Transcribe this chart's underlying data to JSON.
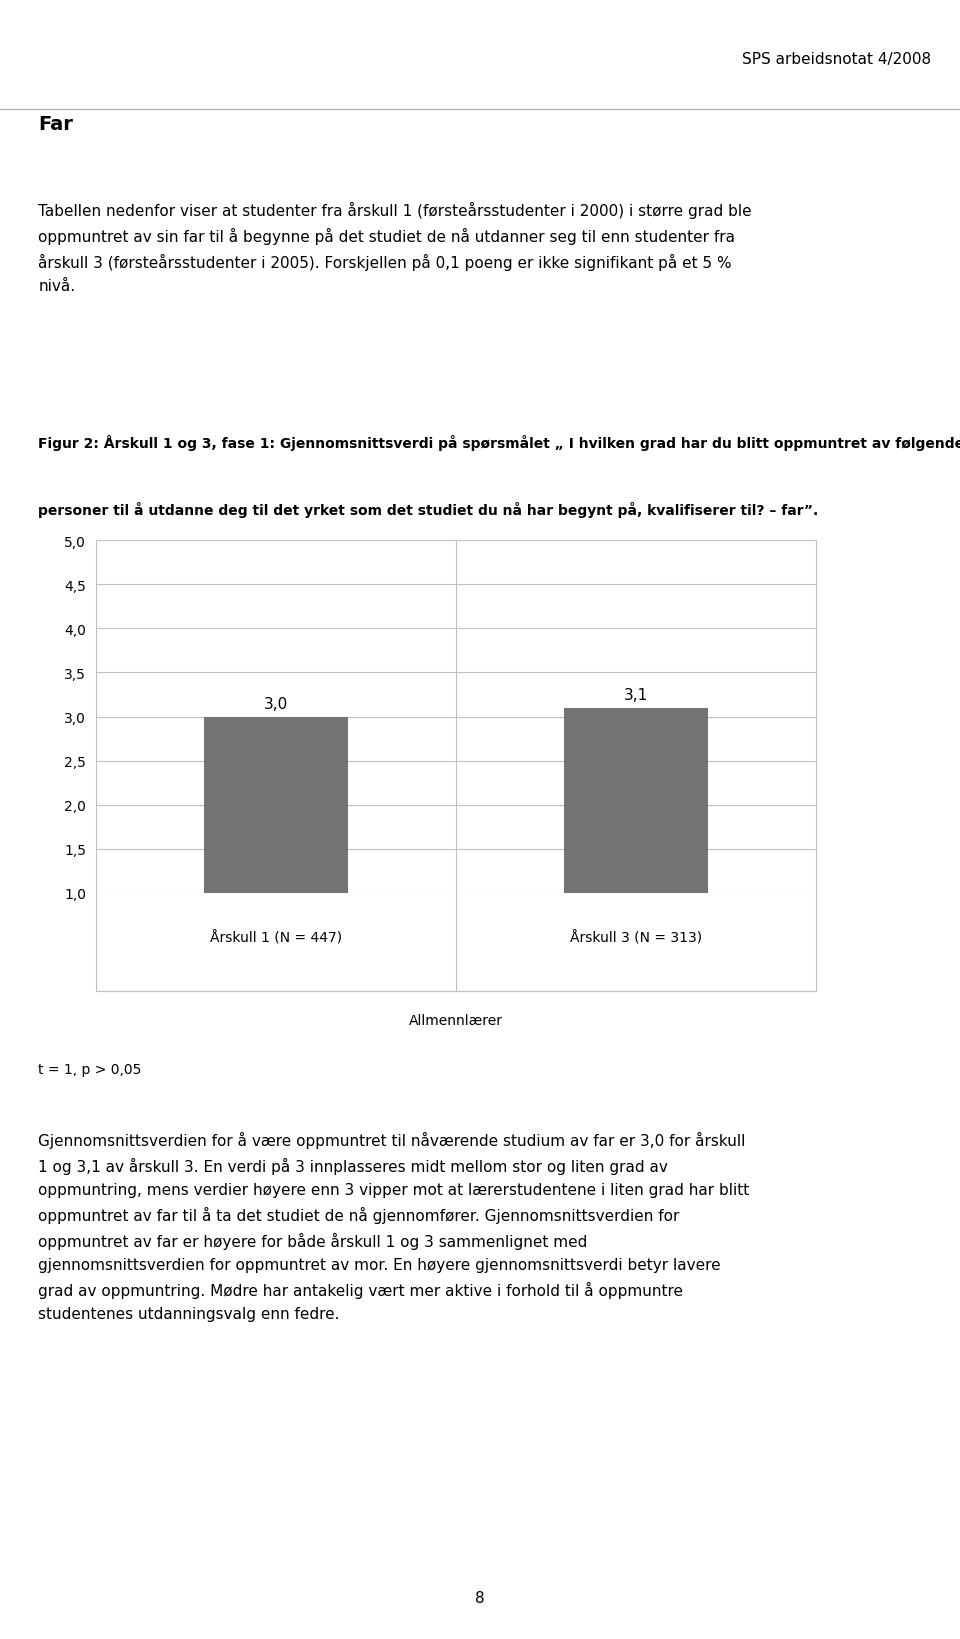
{
  "header_right": "SPS arbeidsnotat 4/2008",
  "intro_bold": "Far",
  "intro_line1": "Tabellen nedenfor viser at studenter fra årskull 1 (førsteårsstudenter i 2000) i større grad ble",
  "intro_line2": "oppmuntret av sin far til å begynne på det studiet de nå utdanner seg til enn studenter fra",
  "intro_line3": "årskull 3 (førsteårsstudenter i 2005). Forskjellen på 0,1 poeng er ikke signifikant på et 5 %",
  "intro_line4": "nivå.",
  "caption_line1": "Figur 2: Årskull 1 og 3, fase 1: Gjennomsnittsverdi på spørsmålet „ I hvilken grad har du blitt oppmuntret av følgende",
  "caption_line2": "personer til å utdanne deg til det yrket som det studiet du nå har begynt på, kvalifiserer til? – far”.",
  "categories": [
    "Årskull 1 (N = 447)",
    "Årskull 3 (N = 313)"
  ],
  "values": [
    3.0,
    3.1
  ],
  "bar_labels": [
    "3,0",
    "3,1"
  ],
  "xlabel_group": "Allmennlærer",
  "bar_color": "#737373",
  "ylim": [
    1.0,
    5.0
  ],
  "yticks": [
    1.0,
    1.5,
    2.0,
    2.5,
    3.0,
    3.5,
    4.0,
    4.5,
    5.0
  ],
  "ytick_labels": [
    "1,0",
    "1,5",
    "2,0",
    "2,5",
    "3,0",
    "3,5",
    "4,0",
    "4,5",
    "5,0"
  ],
  "stat_note": "t = 1, p > 0,05",
  "footer_line1": "Gjennomsnittsverdien for å være oppmuntret til nåværende studium av far er 3,0 for årskull",
  "footer_line2": "1 og 3,1 av årskull 3. En verdi på 3 innplasseres midt mellom stor og liten grad av",
  "footer_line3": "oppmuntring, mens verdier høyere enn 3 vipper mot at lærerstudentene i liten grad har blitt",
  "footer_line4": "oppmuntret av far til å ta det studiet de nå gjennomfører. Gjennomsnittsverdien for",
  "footer_line5": "oppmuntret av far er høyere for både årskull 1 og 3 sammenlignet med",
  "footer_line6": "gjennomsnittsverdien for oppmuntret av mor. En høyere gjennomsnittsverdi betyr lavere",
  "footer_line7": "grad av oppmuntring. Mødre har antakelig vært mer aktive i forhold til å oppmuntre",
  "footer_line8": "studentenes utdanningsvalg enn fedre.",
  "page_number": "8",
  "background_color": "#ffffff",
  "grid_color": "#c0c0c0",
  "text_color": "#000000",
  "bar_label_fontsize": 11,
  "axis_tick_fontsize": 10,
  "cat_label_fontsize": 10,
  "caption_fontsize": 10,
  "body_fontsize": 11,
  "header_fontsize": 11
}
